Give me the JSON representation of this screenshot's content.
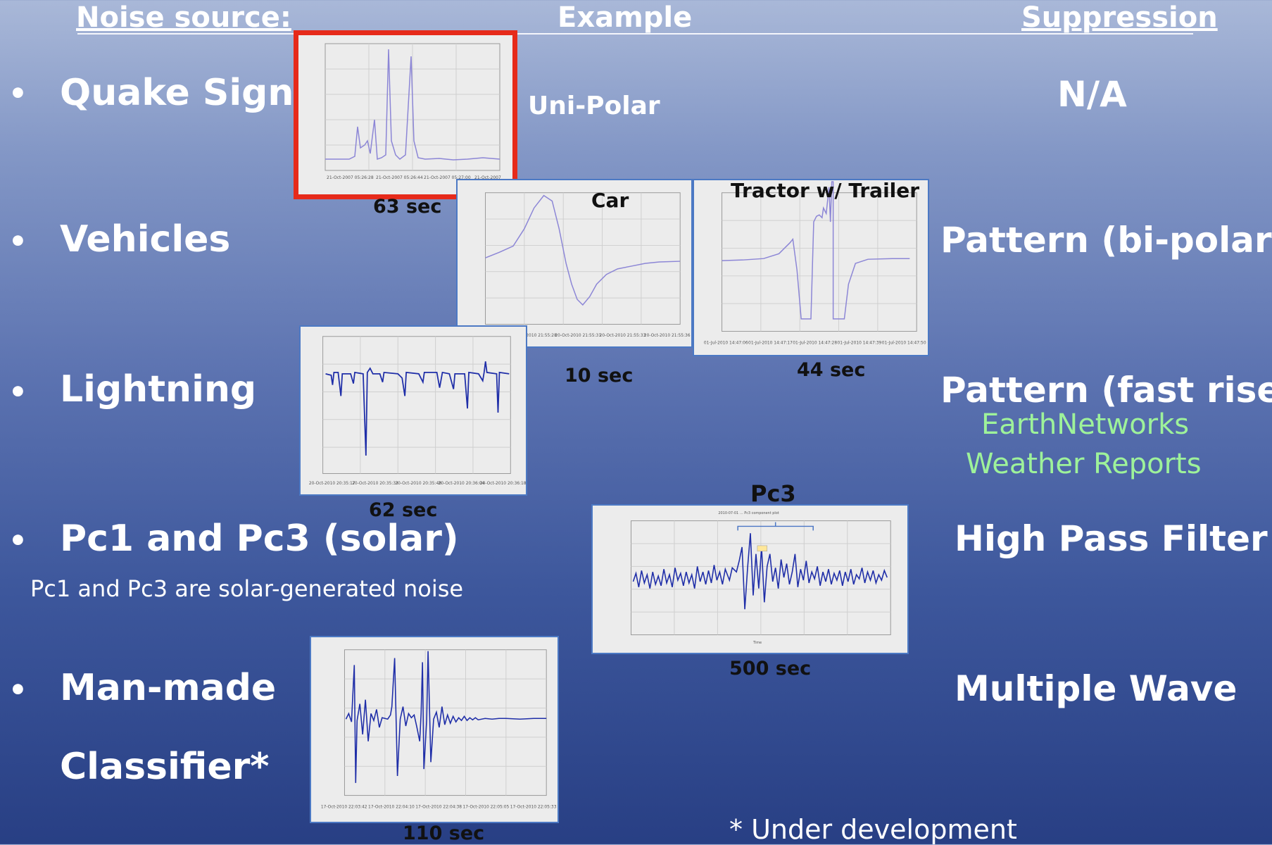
{
  "headers": {
    "noise_source": "Noise source:",
    "example": "Example",
    "suppression": "Suppression"
  },
  "rows": [
    {
      "bullet": "•",
      "label": "Quake Signal",
      "suppression": "N/A"
    },
    {
      "bullet": "•",
      "label": "Vehicles",
      "suppression": "Pattern (bi-polar)*"
    },
    {
      "bullet": "•",
      "label": "Lightning",
      "suppression": "Pattern (fast rise)*"
    },
    {
      "bullet": "•",
      "label": "Pc1 and Pc3 (solar)",
      "suppression": "High Pass Filter"
    },
    {
      "bullet": "•",
      "label": "Man-made",
      "suppression": "Multiple Wave"
    }
  ],
  "classifier_label": "Classifier*",
  "lightning_sources": [
    "EarthNetworks",
    "Weather Reports"
  ],
  "solar_note": "Pc1 and Pc3 are solar-generated noise",
  "footnote": "* Under development",
  "plots": {
    "quake": {
      "annotation": "Uni-Polar",
      "duration": "63 sec"
    },
    "car": {
      "title": "Car",
      "duration": "10 sec"
    },
    "tractor": {
      "title": "Tractor w/ Trailer",
      "duration": "44 sec"
    },
    "lightning": {
      "duration": "62 sec"
    },
    "pc3": {
      "title": "Pc3",
      "duration": "500 sec"
    },
    "manmade": {
      "duration": "110 sec"
    }
  },
  "colors": {
    "trace_light": "#8c86d6",
    "trace_dark": "#1f2ea8",
    "highlight_border": "#e62a1a",
    "source_green": "#9ef29a"
  }
}
